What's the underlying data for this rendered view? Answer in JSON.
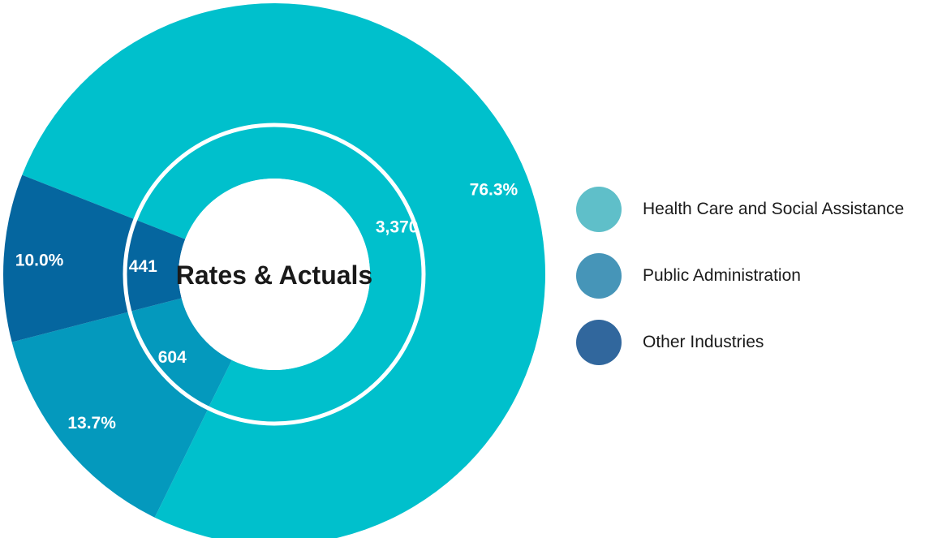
{
  "chart_data": {
    "type": "pie",
    "title": "Rates & Actuals",
    "categories": [
      "Health Care and Social Assistance",
      "Public Administration",
      "Other Industries"
    ],
    "series": [
      {
        "values": [
          76.3,
          13.7,
          10.0
        ],
        "labels": [
          "76.3%",
          "13.7%",
          "10.0%"
        ]
      },
      {
        "values": [
          3370,
          604,
          441
        ],
        "labels": [
          "3,370",
          "604",
          "441"
        ]
      }
    ],
    "legend_position": "right"
  },
  "colors": {
    "health_care_slice": "#00c0cc",
    "public_admin_slice": "#0499bd",
    "other_industries_slice": "#05669f",
    "health_care_legend": "#5fbfc9",
    "public_admin_legend": "#4695b8",
    "other_industries_legend": "#31679d",
    "separator": "#ffffff"
  },
  "legend": {
    "items": [
      {
        "label": "Health Care and Social Assistance"
      },
      {
        "label": "Public Administration"
      },
      {
        "label": "Other Industries"
      }
    ]
  }
}
